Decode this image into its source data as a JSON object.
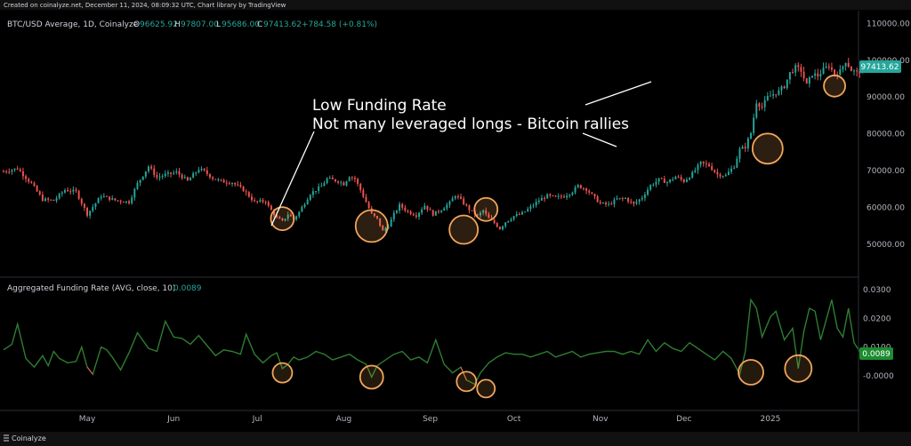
{
  "top_note": "Created on coinalyze.net, December 11, 2024, 08:09:32 UTC, Chart library by TradingView",
  "footer_brand": "Coinalyze",
  "colors": {
    "up": "#26a69a",
    "down": "#ef5350",
    "funding_line": "#2e7d32",
    "funding_value": "#4caf50",
    "circle": "#f2a55a",
    "price_badge": "#26a69a",
    "funding_badge": "#1b8c2f"
  },
  "chart_data": [
    {
      "type": "candlestick",
      "title": "BTC/USD Average, 1D, Coinalyze",
      "ohlc": {
        "open_label": "O",
        "open": "96625.92",
        "high_label": "H",
        "high": "97807.00",
        "low_label": "L",
        "low": "95686.00",
        "close_label": "C",
        "close": "97413.62",
        "change": "+784.58 (+0.81%)"
      },
      "last_price": "97413.62",
      "ylim": [
        44000,
        112000
      ],
      "y_ticks": [
        "110000.00",
        "100000.00",
        "90000.00",
        "80000.00",
        "70000.00",
        "60000.00",
        "50000.00"
      ],
      "y_tick_values": [
        110000,
        100000,
        90000,
        80000,
        70000,
        60000,
        50000
      ],
      "x_ticks": [
        "May",
        "Jun",
        "Jul",
        "Aug",
        "Sep",
        "Oct",
        "Nov",
        "Dec",
        "2025"
      ],
      "x_tick_dates": [
        "2024-05-01",
        "2024-06-01",
        "2024-07-01",
        "2024-08-01",
        "2024-09-01",
        "2024-10-01",
        "2024-11-01",
        "2024-12-01",
        "2025-01-01"
      ],
      "x_range": [
        "2024-04-01",
        "2025-01-31"
      ],
      "first_date": "2024-04-01",
      "close_series": [
        [
          0,
          69800
        ],
        [
          5,
          70600
        ],
        [
          10,
          66500
        ],
        [
          14,
          62200
        ],
        [
          18,
          61900
        ],
        [
          22,
          64800
        ],
        [
          26,
          64300
        ],
        [
          30,
          58200
        ],
        [
          35,
          63200
        ],
        [
          40,
          62000
        ],
        [
          45,
          61500
        ],
        [
          48,
          66500
        ],
        [
          52,
          71200
        ],
        [
          55,
          68200
        ],
        [
          58,
          68900
        ],
        [
          62,
          69600
        ],
        [
          66,
          67200
        ],
        [
          70,
          70500
        ],
        [
          72,
          69800
        ],
        [
          75,
          68000
        ],
        [
          78,
          67100
        ],
        [
          82,
          66800
        ],
        [
          86,
          64800
        ],
        [
          90,
          61500
        ],
        [
          94,
          61800
        ],
        [
          95,
          60300
        ],
        [
          98,
          57200
        ],
        [
          100,
          56200
        ],
        [
          102,
          58200
        ],
        [
          104,
          56800
        ],
        [
          106,
          58800
        ],
        [
          110,
          63800
        ],
        [
          114,
          65800
        ],
        [
          116,
          67800
        ],
        [
          120,
          67200
        ],
        [
          122,
          66400
        ],
        [
          124,
          68600
        ],
        [
          126,
          67800
        ],
        [
          128,
          64800
        ],
        [
          130,
          61500
        ],
        [
          132,
          58200
        ],
        [
          134,
          56900
        ],
        [
          136,
          53600
        ],
        [
          138,
          55200
        ],
        [
          140,
          58200
        ],
        [
          142,
          60600
        ],
        [
          145,
          58900
        ],
        [
          148,
          57900
        ],
        [
          151,
          60600
        ],
        [
          154,
          58200
        ],
        [
          157,
          59500
        ],
        [
          160,
          61300
        ],
        [
          162,
          63400
        ],
        [
          164,
          62000
        ],
        [
          167,
          59500
        ],
        [
          170,
          57700
        ],
        [
          172,
          59200
        ],
        [
          174,
          57000
        ],
        [
          176,
          55800
        ],
        [
          178,
          54300
        ],
        [
          180,
          56100
        ],
        [
          183,
          57700
        ],
        [
          186,
          58400
        ],
        [
          189,
          60100
        ],
        [
          192,
          62000
        ],
        [
          195,
          63200
        ],
        [
          198,
          62700
        ],
        [
          201,
          63100
        ],
        [
          204,
          64400
        ],
        [
          206,
          65900
        ],
        [
          209,
          65000
        ],
        [
          211,
          63400
        ],
        [
          214,
          61100
        ],
        [
          217,
          60800
        ],
        [
          220,
          62300
        ],
        [
          223,
          62500
        ],
        [
          226,
          60900
        ],
        [
          229,
          62800
        ],
        [
          232,
          66000
        ],
        [
          235,
          67600
        ],
        [
          238,
          66900
        ],
        [
          241,
          68400
        ],
        [
          244,
          67200
        ],
        [
          247,
          69200
        ],
        [
          250,
          72100
        ],
        [
          253,
          71400
        ],
        [
          256,
          69000
        ],
        [
          259,
          68700
        ],
        [
          262,
          71300
        ],
        [
          264,
          75700
        ],
        [
          266,
          76500
        ],
        [
          268,
          80300
        ],
        [
          270,
          88700
        ],
        [
          272,
          87300
        ],
        [
          274,
          89900
        ],
        [
          276,
          90800
        ],
        [
          278,
          91500
        ],
        [
          280,
          93000
        ],
        [
          282,
          96500
        ],
        [
          284,
          98000
        ],
        [
          286,
          97200
        ],
        [
          288,
          93200
        ],
        [
          290,
          96300
        ],
        [
          292,
          95800
        ],
        [
          294,
          97400
        ],
        [
          296,
          98500
        ],
        [
          298,
          96300
        ],
        [
          300,
          97000
        ],
        [
          302,
          99800
        ],
        [
          304,
          97300
        ],
        [
          306,
          96600
        ],
        [
          308,
          97413
        ]
      ],
      "highlighted_points": [
        [
          100,
          57000
        ],
        [
          132,
          55000
        ],
        [
          165,
          54000
        ],
        [
          173,
          59500
        ],
        [
          274,
          76000
        ],
        [
          298,
          93000
        ]
      ]
    },
    {
      "type": "line",
      "title": "Aggregated Funding Rate (AVG, close, 10)",
      "last_value": "0.0089",
      "ylim": [
        -0.0115,
        0.0325
      ],
      "y_ticks": [
        "0.0300",
        "0.0200",
        "0.0100",
        "-0.0000"
      ],
      "y_tick_values": [
        0.03,
        0.02,
        0.01,
        0.0
      ],
      "x_ticks": [
        "May",
        "Jun",
        "Jul",
        "Aug",
        "Sep",
        "Oct",
        "Nov",
        "Dec",
        "2025"
      ],
      "series": [
        {
          "values": [
            [
              0,
              0.009
            ],
            [
              3,
              0.011
            ],
            [
              5,
              0.018
            ],
            [
              8,
              0.006
            ],
            [
              11,
              0.003
            ],
            [
              14,
              0.007
            ],
            [
              16,
              0.0035
            ],
            [
              18,
              0.0085
            ],
            [
              20,
              0.006
            ],
            [
              23,
              0.0045
            ],
            [
              26,
              0.005
            ],
            [
              28,
              0.01
            ],
            [
              30,
              0.003
            ],
            [
              32,
              0.0005
            ],
            [
              35,
              0.01
            ],
            [
              37,
              0.009
            ],
            [
              39,
              0.0065
            ],
            [
              42,
              0.002
            ],
            [
              45,
              0.008
            ],
            [
              48,
              0.015
            ],
            [
              52,
              0.0095
            ],
            [
              55,
              0.0085
            ],
            [
              58,
              0.019
            ],
            [
              61,
              0.0135
            ],
            [
              64,
              0.013
            ],
            [
              67,
              0.011
            ],
            [
              70,
              0.014
            ],
            [
              73,
              0.0105
            ],
            [
              76,
              0.007
            ],
            [
              79,
              0.009
            ],
            [
              82,
              0.0085
            ],
            [
              85,
              0.0075
            ],
            [
              87,
              0.0145
            ],
            [
              90,
              0.0075
            ],
            [
              93,
              0.0045
            ],
            [
              96,
              0.007
            ],
            [
              98,
              0.008
            ],
            [
              100,
              0.0025
            ],
            [
              102,
              0.004
            ],
            [
              104,
              0.0065
            ],
            [
              106,
              0.0055
            ],
            [
              109,
              0.0065
            ],
            [
              112,
              0.0085
            ],
            [
              115,
              0.0075
            ],
            [
              118,
              0.0055
            ],
            [
              121,
              0.0065
            ],
            [
              124,
              0.0075
            ],
            [
              127,
              0.0055
            ],
            [
              130,
              0.004
            ],
            [
              132,
              -0.0005
            ],
            [
              134,
              0.0035
            ],
            [
              137,
              0.0055
            ],
            [
              140,
              0.0075
            ],
            [
              143,
              0.0085
            ],
            [
              146,
              0.0055
            ],
            [
              149,
              0.0065
            ],
            [
              152,
              0.0045
            ],
            [
              155,
              0.0125
            ],
            [
              158,
              0.004
            ],
            [
              161,
              0.001
            ],
            [
              164,
              0.003
            ],
            [
              166,
              -0.0015
            ],
            [
              169,
              -0.003
            ],
            [
              171,
              0.001
            ],
            [
              174,
              0.0045
            ],
            [
              177,
              0.0065
            ],
            [
              180,
              0.008
            ],
            [
              183,
              0.0075
            ],
            [
              186,
              0.0075
            ],
            [
              189,
              0.0065
            ],
            [
              192,
              0.0075
            ],
            [
              195,
              0.0085
            ],
            [
              198,
              0.0065
            ],
            [
              201,
              0.0075
            ],
            [
              204,
              0.0085
            ],
            [
              207,
              0.0065
            ],
            [
              210,
              0.0075
            ],
            [
              213,
              0.008
            ],
            [
              216,
              0.0085
            ],
            [
              219,
              0.0085
            ],
            [
              222,
              0.0075
            ],
            [
              225,
              0.0085
            ],
            [
              228,
              0.0075
            ],
            [
              231,
              0.0125
            ],
            [
              234,
              0.0085
            ],
            [
              237,
              0.0115
            ],
            [
              240,
              0.0095
            ],
            [
              243,
              0.0085
            ],
            [
              246,
              0.0115
            ],
            [
              249,
              0.0095
            ],
            [
              252,
              0.0075
            ],
            [
              255,
              0.0055
            ],
            [
              258,
              0.0085
            ],
            [
              261,
              0.006
            ],
            [
              264,
              0.0005
            ],
            [
              266,
              0.0085
            ],
            [
              268,
              0.0265
            ],
            [
              270,
              0.0235
            ],
            [
              272,
              0.0135
            ],
            [
              275,
              0.0205
            ],
            [
              277,
              0.0225
            ],
            [
              280,
              0.0125
            ],
            [
              283,
              0.0165
            ],
            [
              285,
              0.0025
            ],
            [
              287,
              0.0155
            ],
            [
              289,
              0.0235
            ],
            [
              291,
              0.0225
            ],
            [
              293,
              0.0125
            ],
            [
              295,
              0.0195
            ],
            [
              297,
              0.0265
            ],
            [
              299,
              0.0165
            ],
            [
              301,
              0.0135
            ],
            [
              303,
              0.0235
            ],
            [
              305,
              0.0115
            ],
            [
              307,
              0.0085
            ],
            [
              308,
              0.0089
            ]
          ]
        }
      ],
      "highlighted_points": [
        [
          100,
          0.001
        ],
        [
          132,
          -0.0005
        ],
        [
          166,
          -0.002
        ],
        [
          173,
          -0.0045
        ],
        [
          268,
          0.0012
        ],
        [
          285,
          0.0025
        ]
      ]
    }
  ],
  "annotations": {
    "line1": "Low Funding Rate",
    "line2": "Not many leveraged longs - Bitcoin rallies"
  }
}
